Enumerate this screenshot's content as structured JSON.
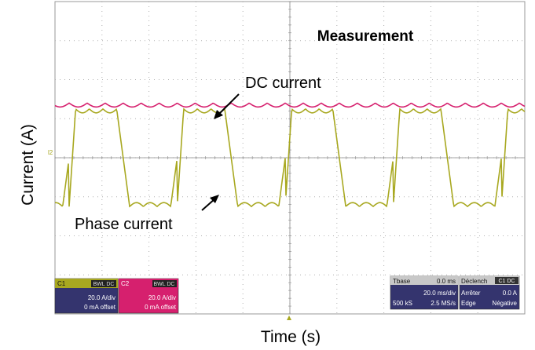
{
  "chart_data": {
    "type": "line",
    "title": "Measurement",
    "xlabel": "Time (s)",
    "ylabel": "Current (A)",
    "grid": true,
    "legend": "none",
    "annotations": [
      {
        "text": "DC current",
        "target_series": "dc"
      },
      {
        "text": "Phase current",
        "target_series": "phase"
      }
    ],
    "ground_marker": "l2",
    "series": [
      {
        "key": "dc",
        "color": "#d6206e",
        "level_div": 1.35,
        "ripple_div": 0.1,
        "ripples_per_period": 6
      },
      {
        "key": "phase",
        "color": "#a8a820",
        "amplitude_div": 1.25,
        "period_ms": 46,
        "flat_top_ratio": 0.45
      }
    ],
    "x_divisions": 10,
    "y_divisions": 8
  },
  "scope": {
    "c1": {
      "tag": "C1",
      "coupling": "BWL DC",
      "scale": "20.0 A/div",
      "offset": "0 mA offset"
    },
    "c2": {
      "tag": "C2",
      "coupling": "BWL DC",
      "scale": "20.0 A/div",
      "offset": "0 mA offset"
    },
    "timebase": {
      "title": "Tbase",
      "pos": "0.0 ms",
      "rate": "20.0 ms/div",
      "samples": "500 kS",
      "sample_rate": "2.5 MS/s"
    },
    "trigger": {
      "title": "Déclench",
      "badge": "C1 DC",
      "mode": "Arrêter",
      "level": "0.0 A",
      "type": "Edge",
      "slope": "Négative"
    }
  },
  "colors": {
    "dc": "#d6206e",
    "phase": "#a8a820",
    "panel_blue": "#34346e",
    "grid": "#b0b0b0"
  }
}
